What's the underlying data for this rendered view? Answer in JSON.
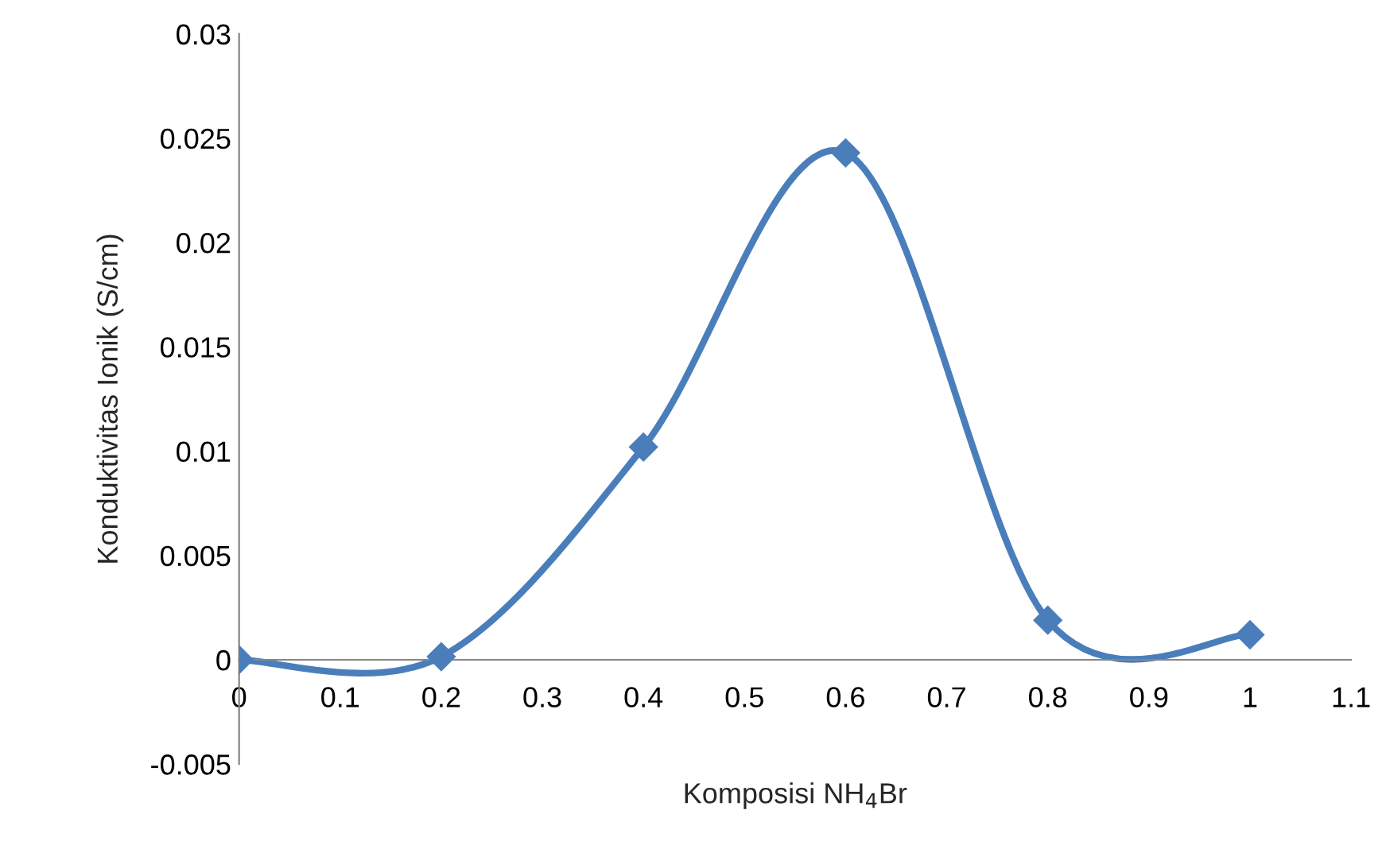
{
  "chart_data": {
    "type": "line",
    "xlabel": "Komposisi NH$_{4}$Br",
    "ylabel": "Konduktivitas Ionik (S/cm)",
    "x": [
      0,
      0.2,
      0.4,
      0.6,
      0.8,
      1
    ],
    "series": [
      {
        "color": "#4a7ebb",
        "values": [
          0,
          0.00015,
          0.0102,
          0.0243,
          0.0019,
          0.0012
        ]
      }
    ],
    "xlim": [
      0,
      1.1
    ],
    "xticks": [
      0,
      0.1,
      0.2,
      0.3,
      0.4,
      0.5,
      0.6,
      0.7,
      0.8,
      0.9,
      1,
      1.1
    ],
    "ylim": [
      -0.005,
      0.03
    ],
    "yticks": [
      -0.005,
      0,
      0.005,
      0.01,
      0.015,
      0.02,
      0.025,
      0.03
    ],
    "marker": "diamond",
    "line_style": "solid",
    "grid": false,
    "legend": false
  }
}
